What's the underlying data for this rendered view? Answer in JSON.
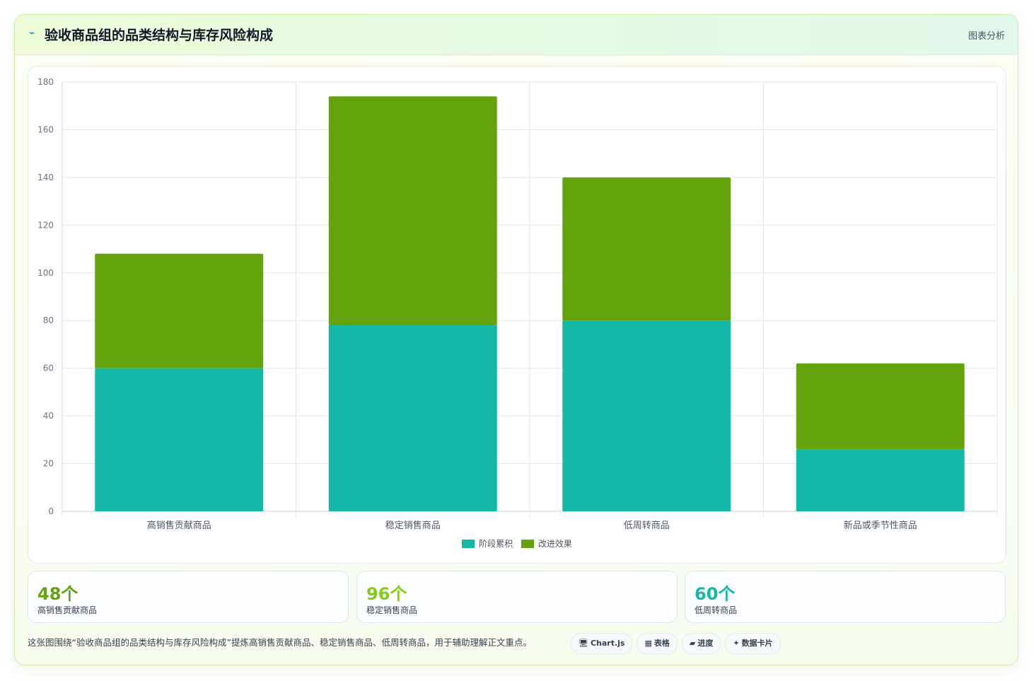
{
  "header": {
    "icon": "chart-line-icon",
    "title": "验收商品组的品类结构与库存风险构成",
    "link": "图表分析"
  },
  "colors": {
    "series1": "#14b8a6",
    "series2": "#65a30d",
    "grid": "#e5e7eb"
  },
  "chart_data": {
    "type": "bar",
    "stacked": true,
    "categories": [
      "高销售贡献商品",
      "稳定销售商品",
      "低周转商品",
      "新品或季节性商品"
    ],
    "series": [
      {
        "name": "阶段累积",
        "values": [
          60,
          78,
          80,
          26
        ]
      },
      {
        "name": "改进效果",
        "values": [
          48,
          96,
          60,
          36
        ]
      }
    ],
    "ylim": [
      0,
      180
    ],
    "yticks": [
      0,
      20,
      40,
      60,
      80,
      100,
      120,
      140,
      160,
      180
    ],
    "grid": true,
    "legend": "bottom"
  },
  "stats": [
    {
      "value": "48个",
      "label": "高销售贡献商品",
      "color": "#65a30d"
    },
    {
      "value": "96个",
      "label": "稳定销售商品",
      "color": "#84cc16"
    },
    {
      "value": "60个",
      "label": "低周转商品",
      "color": "#14b8a6"
    }
  ],
  "footer": {
    "text": "这张图围绕“验收商品组的品类结构与库存风险构成”提炼高销售贡献商品、稳定销售商品、低周转商品，用于辅助理解正文重点。",
    "tags": [
      {
        "icon": "🖥",
        "label": "Chart.js"
      },
      {
        "icon": "▦",
        "label": "表格"
      },
      {
        "icon": "▰",
        "label": "进度"
      },
      {
        "icon": "✦",
        "label": "数据卡片"
      }
    ]
  }
}
